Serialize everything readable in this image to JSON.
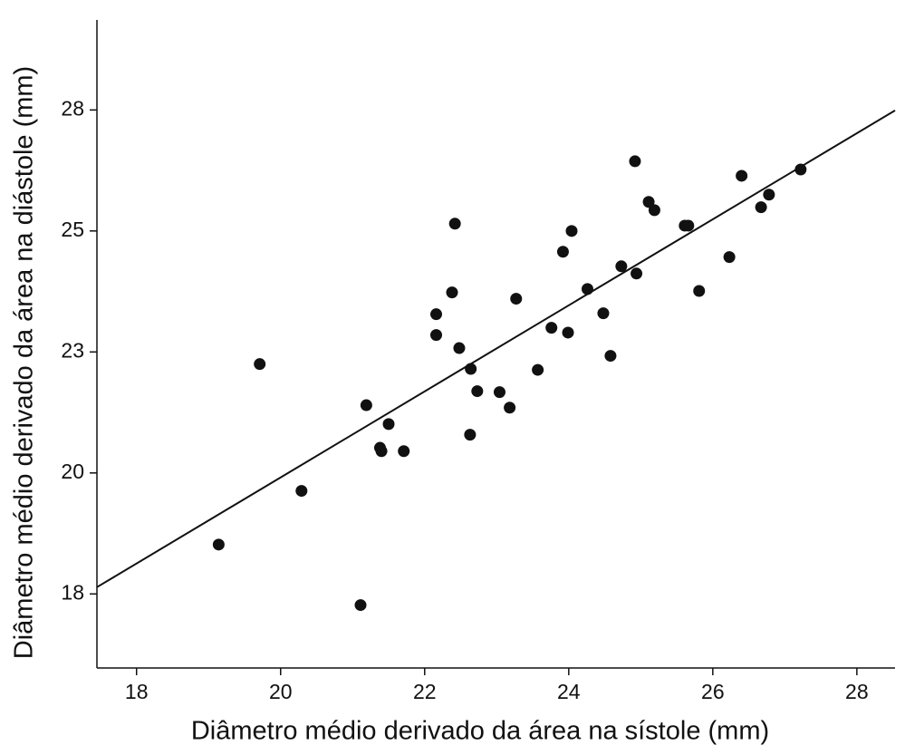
{
  "chart_data": {
    "type": "scatter",
    "x_label": "Diâmetro médio derivado da área na sístole (mm)",
    "y_label": "Diâmetro médio derivado da área na diástole (mm)",
    "color": "#111111",
    "xlim": [
      17.45,
      28.53
    ],
    "ylim": [
      15.97,
      29.36
    ],
    "xticks": [
      18,
      20,
      22,
      24,
      26,
      28
    ],
    "yticks": [
      {
        "value": 17.5,
        "label": "18"
      },
      {
        "value": 20,
        "label": "20"
      },
      {
        "value": 22.5,
        "label": "23"
      },
      {
        "value": 25,
        "label": "25"
      },
      {
        "value": 27.5,
        "label": "28"
      }
    ],
    "x": [
      19.14,
      19.71,
      20.29,
      21.11,
      21.19,
      21.38,
      21.4,
      21.5,
      21.71,
      22.16,
      22.16,
      22.38,
      22.42,
      22.48,
      22.64,
      22.63,
      22.73,
      23.04,
      23.18,
      23.27,
      23.57,
      23.76,
      23.92,
      23.99,
      24.04,
      24.26,
      24.48,
      24.58,
      24.73,
      24.92,
      25.11,
      25.19,
      24.94,
      25.61,
      25.66,
      25.81,
      26.23,
      26.4,
      26.67,
      26.78,
      27.22
    ],
    "y": [
      18.52,
      22.25,
      19.63,
      17.27,
      21.4,
      20.52,
      20.45,
      21.01,
      20.45,
      23.28,
      22.85,
      23.73,
      25.15,
      22.58,
      22.15,
      20.79,
      21.69,
      21.67,
      21.35,
      23.6,
      22.13,
      23.0,
      24.57,
      22.9,
      25.0,
      23.8,
      23.3,
      22.42,
      24.27,
      26.44,
      25.6,
      25.43,
      24.12,
      25.11,
      25.11,
      23.76,
      24.46,
      26.14,
      25.49,
      25.75,
      26.27
    ],
    "fit_line": {
      "x": [
        17.45,
        28.53
      ],
      "y": [
        17.64,
        27.49
      ]
    }
  }
}
